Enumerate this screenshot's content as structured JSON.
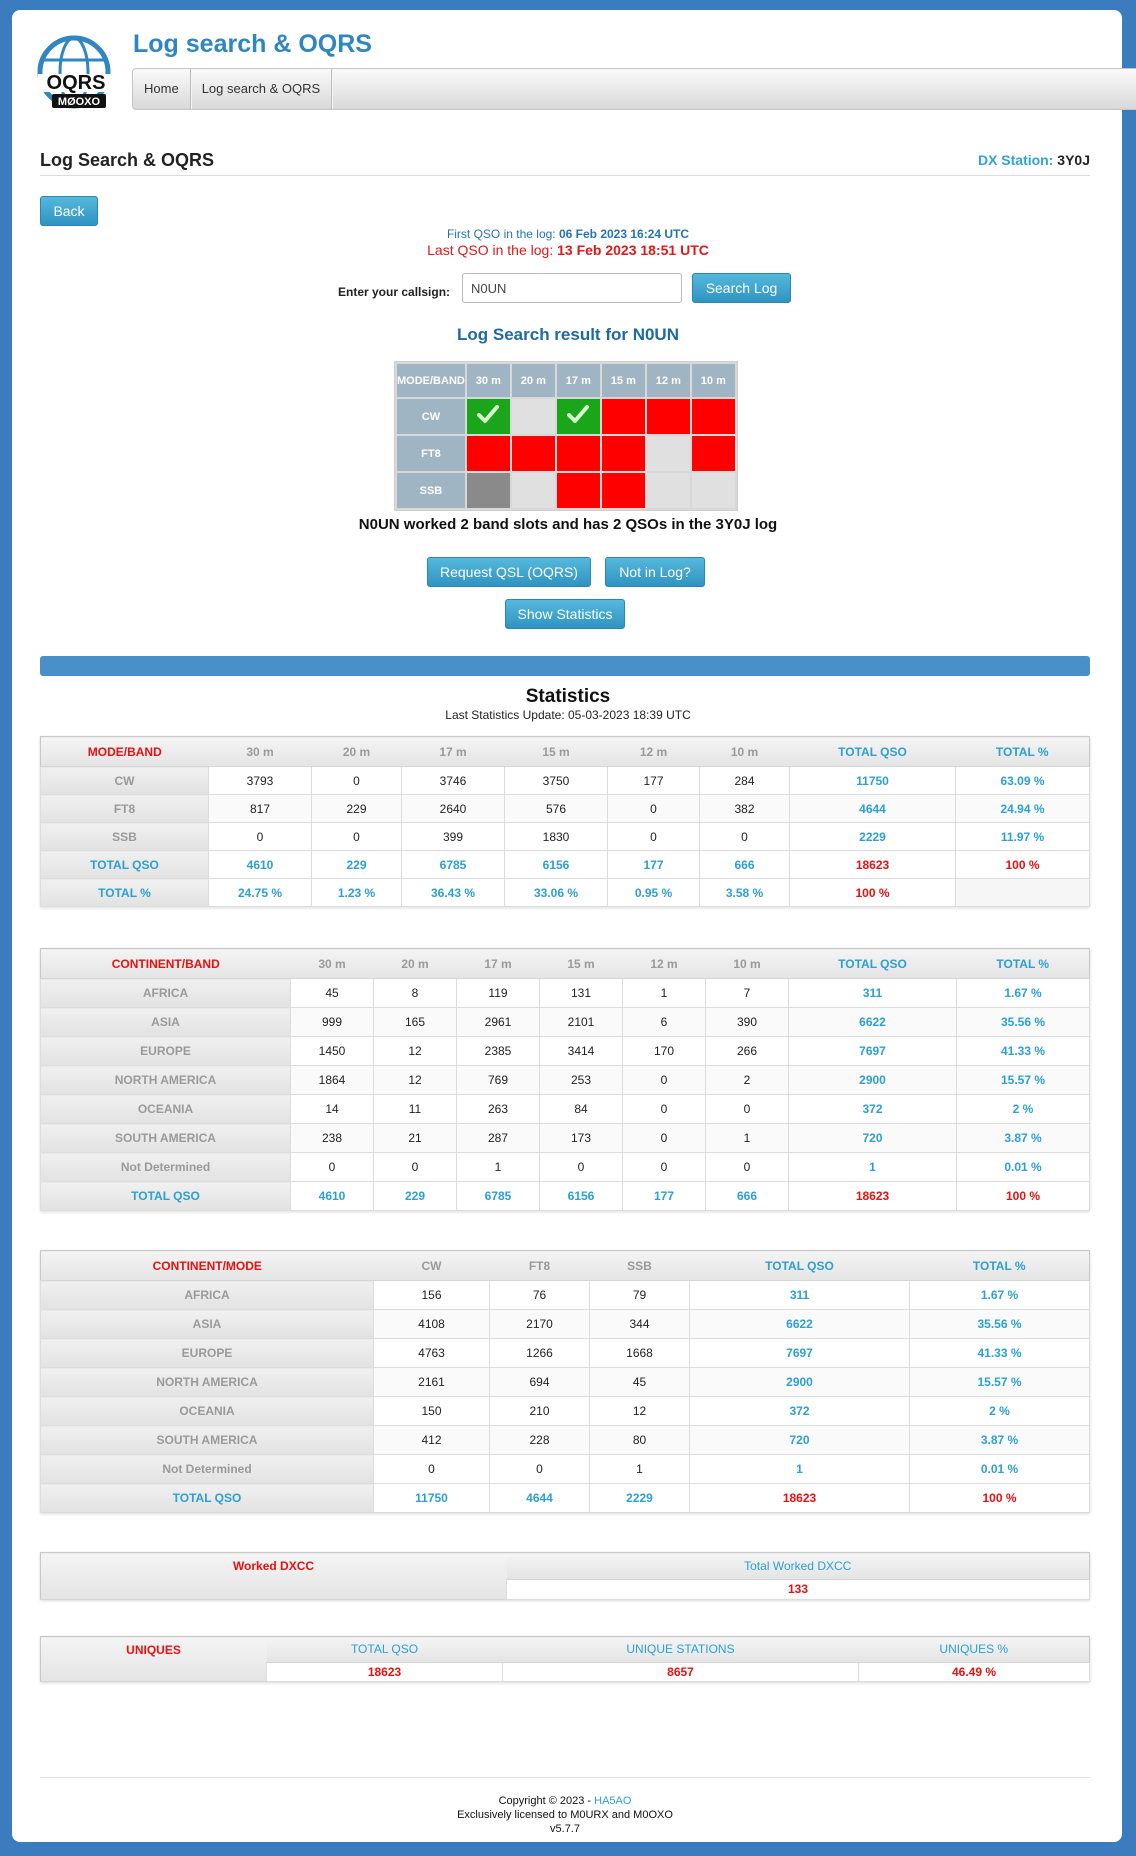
{
  "header": {
    "site_title": "Log search & OQRS",
    "logo_text_top": "OQRS",
    "logo_text_bottom": "MØOXO",
    "nav": [
      "Home",
      "Log search & OQRS"
    ]
  },
  "page": {
    "title": "Log Search & OQRS",
    "dx_label": "DX Station:",
    "dx_call": "3Y0J",
    "back_label": "Back",
    "first_qso_label": "First QSO in the log:",
    "first_qso_value": "06 Feb 2023 16:24 UTC",
    "last_qso_label": "Last QSO in the log:",
    "last_qso_value": "13 Feb 2023 18:51 UTC",
    "callsign_label": "Enter your callsign:",
    "callsign_value": "N0UN",
    "search_label": "Search Log",
    "result_title": "Log Search result for N0UN",
    "summary": "N0UN worked 2 band slots and has 2 QSOs in the 3Y0J log",
    "qsl_label": "Request QSL (OQRS)",
    "notinlog_label": "Not in Log?",
    "stats_label": "Show Statistics"
  },
  "result_grid": {
    "corner": "MODE/BAND",
    "bands": [
      "30 m",
      "20 m",
      "17 m",
      "15 m",
      "12 m",
      "10 m"
    ],
    "rows": [
      {
        "mode": "CW",
        "cells": [
          "green",
          "gray",
          "green",
          "red",
          "red",
          "red"
        ]
      },
      {
        "mode": "FT8",
        "cells": [
          "red",
          "red",
          "red",
          "red",
          "gray",
          "red"
        ]
      },
      {
        "mode": "SSB",
        "cells": [
          "dark",
          "gray",
          "red",
          "red",
          "gray",
          "gray"
        ]
      }
    ],
    "colors": {
      "green": "#1aa51a",
      "red": "#ff0000",
      "gray": "#e0e0e0",
      "dark": "#8a8a8a"
    }
  },
  "stats": {
    "title": "Statistics",
    "update": "Last Statistics Update: 05-03-2023 18:39 UTC",
    "mode_band": {
      "headers": [
        "MODE/BAND",
        "30 m",
        "20 m",
        "17 m",
        "15 m",
        "12 m",
        "10 m",
        "TOTAL QSO",
        "TOTAL %"
      ],
      "rows": [
        {
          "label": "CW",
          "values": [
            "3793",
            "0",
            "3746",
            "3750",
            "177",
            "284"
          ],
          "total": "11750",
          "pct": "63.09 %"
        },
        {
          "label": "FT8",
          "values": [
            "817",
            "229",
            "2640",
            "576",
            "0",
            "382"
          ],
          "total": "4644",
          "pct": "24.94 %"
        },
        {
          "label": "SSB",
          "values": [
            "0",
            "0",
            "399",
            "1830",
            "0",
            "0"
          ],
          "total": "2229",
          "pct": "11.97 %"
        }
      ],
      "total_row": {
        "label": "TOTAL QSO",
        "values": [
          "4610",
          "229",
          "6785",
          "6156",
          "177",
          "666"
        ],
        "total": "18623",
        "pct": "100 %"
      },
      "pct_row": {
        "label": "TOTAL %",
        "values": [
          "24.75 %",
          "1.23 %",
          "36.43 %",
          "33.06 %",
          "0.95 %",
          "3.58 %"
        ],
        "total": "100 %",
        "pct": ""
      }
    },
    "continent_band": {
      "headers": [
        "CONTINENT/BAND",
        "30 m",
        "20 m",
        "17 m",
        "15 m",
        "12 m",
        "10 m",
        "TOTAL QSO",
        "TOTAL %"
      ],
      "rows": [
        {
          "label": "AFRICA",
          "values": [
            "45",
            "8",
            "119",
            "131",
            "1",
            "7"
          ],
          "total": "311",
          "pct": "1.67 %"
        },
        {
          "label": "ASIA",
          "values": [
            "999",
            "165",
            "2961",
            "2101",
            "6",
            "390"
          ],
          "total": "6622",
          "pct": "35.56 %"
        },
        {
          "label": "EUROPE",
          "values": [
            "1450",
            "12",
            "2385",
            "3414",
            "170",
            "266"
          ],
          "total": "7697",
          "pct": "41.33 %"
        },
        {
          "label": "NORTH AMERICA",
          "values": [
            "1864",
            "12",
            "769",
            "253",
            "0",
            "2"
          ],
          "total": "2900",
          "pct": "15.57 %"
        },
        {
          "label": "OCEANIA",
          "values": [
            "14",
            "11",
            "263",
            "84",
            "0",
            "0"
          ],
          "total": "372",
          "pct": "2 %"
        },
        {
          "label": "SOUTH AMERICA",
          "values": [
            "238",
            "21",
            "287",
            "173",
            "0",
            "1"
          ],
          "total": "720",
          "pct": "3.87 %"
        },
        {
          "label": "Not Determined",
          "values": [
            "0",
            "0",
            "1",
            "0",
            "0",
            "0"
          ],
          "total": "1",
          "pct": "0.01 %"
        }
      ],
      "total_row": {
        "label": "TOTAL QSO",
        "values": [
          "4610",
          "229",
          "6785",
          "6156",
          "177",
          "666"
        ],
        "total": "18623",
        "pct": "100 %"
      }
    },
    "continent_mode": {
      "headers": [
        "CONTINENT/MODE",
        "CW",
        "FT8",
        "SSB",
        "TOTAL QSO",
        "TOTAL %"
      ],
      "rows": [
        {
          "label": "AFRICA",
          "values": [
            "156",
            "76",
            "79"
          ],
          "total": "311",
          "pct": "1.67 %"
        },
        {
          "label": "ASIA",
          "values": [
            "4108",
            "2170",
            "344"
          ],
          "total": "6622",
          "pct": "35.56 %"
        },
        {
          "label": "EUROPE",
          "values": [
            "4763",
            "1266",
            "1668"
          ],
          "total": "7697",
          "pct": "41.33 %"
        },
        {
          "label": "NORTH AMERICA",
          "values": [
            "2161",
            "694",
            "45"
          ],
          "total": "2900",
          "pct": "15.57 %"
        },
        {
          "label": "OCEANIA",
          "values": [
            "150",
            "210",
            "12"
          ],
          "total": "372",
          "pct": "2 %"
        },
        {
          "label": "SOUTH AMERICA",
          "values": [
            "412",
            "228",
            "80"
          ],
          "total": "720",
          "pct": "3.87 %"
        },
        {
          "label": "Not Determined",
          "values": [
            "0",
            "0",
            "1"
          ],
          "total": "1",
          "pct": "0.01 %"
        }
      ],
      "total_row": {
        "label": "TOTAL QSO",
        "values": [
          "11750",
          "4644",
          "2229"
        ],
        "total": "18623",
        "pct": "100 %"
      }
    },
    "dxcc": {
      "label": "Worked DXCC",
      "header": "Total Worked DXCC",
      "value": "133"
    },
    "uniques": {
      "label": "UNIQUES",
      "headers": [
        "TOTAL QSO",
        "UNIQUE STATIONS",
        "UNIQUES %"
      ],
      "values": [
        "18623",
        "8657",
        "46.49 %"
      ]
    }
  },
  "footer": {
    "copyright": "Copyright © 2023 -",
    "author": "HA5AO",
    "license": "Exclusively licensed to M0URX and M0OXO",
    "version": "v5.7.7"
  }
}
